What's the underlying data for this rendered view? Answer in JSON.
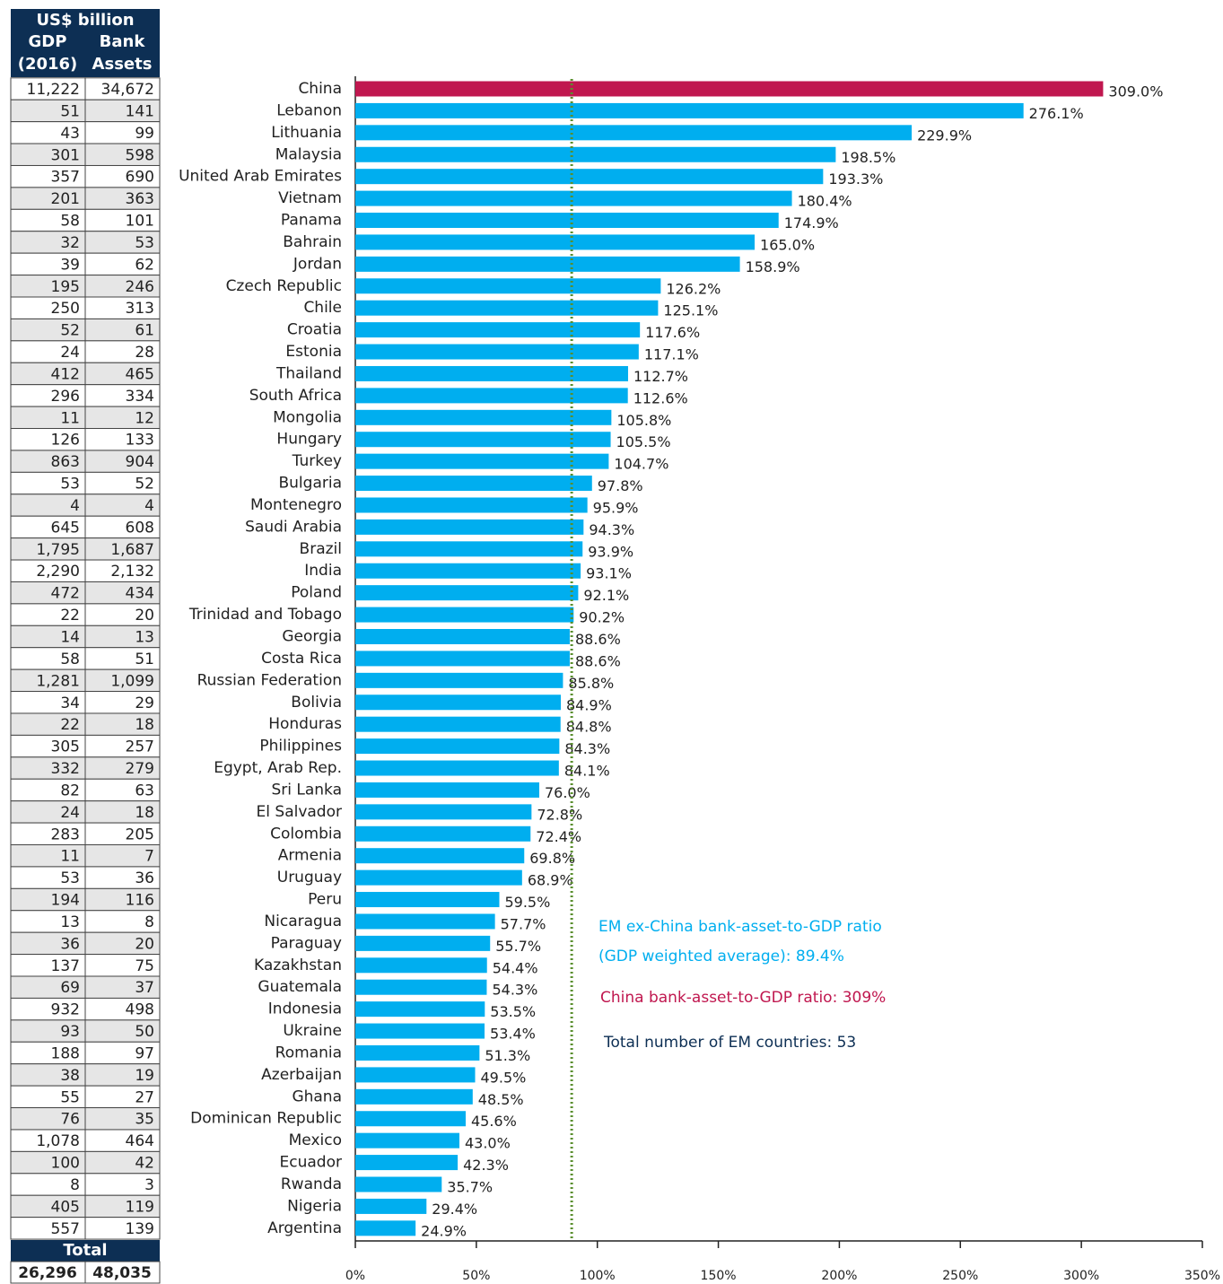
{
  "chart_data": {
    "type": "barh",
    "categories": [
      "China",
      "Lebanon",
      "Lithuania",
      "Malaysia",
      "United Arab Emirates",
      "Vietnam",
      "Panama",
      "Bahrain",
      "Jordan",
      "Czech Republic",
      "Chile",
      "Croatia",
      "Estonia",
      "Thailand",
      "South Africa",
      "Mongolia",
      "Hungary",
      "Turkey",
      "Bulgaria",
      "Montenegro",
      "Saudi Arabia",
      "Brazil",
      "India",
      "Poland",
      "Trinidad and Tobago",
      "Georgia",
      "Costa Rica",
      "Russian Federation",
      "Bolivia",
      "Honduras",
      "Philippines",
      "Egypt, Arab Rep.",
      "Sri Lanka",
      "El Salvador",
      "Colombia",
      "Armenia",
      "Uruguay",
      "Peru",
      "Nicaragua",
      "Paraguay",
      "Kazakhstan",
      "Guatemala",
      "Indonesia",
      "Ukraine",
      "Romania",
      "Azerbaijan",
      "Ghana",
      "Dominican Republic",
      "Mexico",
      "Ecuador",
      "Rwanda",
      "Nigeria",
      "Argentina"
    ],
    "values": [
      309.0,
      276.1,
      229.9,
      198.5,
      193.3,
      180.4,
      174.9,
      165.0,
      158.9,
      126.2,
      125.1,
      117.6,
      117.1,
      112.7,
      112.6,
      105.8,
      105.5,
      104.7,
      97.8,
      95.9,
      94.3,
      93.9,
      93.1,
      92.1,
      90.2,
      88.6,
      88.6,
      85.8,
      84.9,
      84.8,
      84.3,
      84.1,
      76.0,
      72.8,
      72.4,
      69.8,
      68.9,
      59.5,
      57.7,
      55.7,
      54.4,
      54.3,
      53.5,
      53.4,
      51.3,
      49.5,
      48.5,
      45.6,
      43.0,
      42.3,
      35.7,
      29.4,
      24.9
    ],
    "value_labels": [
      "309.0%",
      "276.1%",
      "229.9%",
      "198.5%",
      "193.3%",
      "180.4%",
      "174.9%",
      "165.0%",
      "158.9%",
      "126.2%",
      "125.1%",
      "117.6%",
      "117.1%",
      "112.7%",
      "112.6%",
      "105.8%",
      "105.5%",
      "104.7%",
      "97.8%",
      "95.9%",
      "94.3%",
      "93.9%",
      "93.1%",
      "92.1%",
      "90.2%",
      "88.6%",
      "88.6%",
      "85.8%",
      "84.9%",
      "84.8%",
      "84.3%",
      "84.1%",
      "76.0%",
      "72.8%",
      "72.4%",
      "69.8%",
      "68.9%",
      "59.5%",
      "57.7%",
      "55.7%",
      "54.4%",
      "54.3%",
      "53.5%",
      "53.4%",
      "51.3%",
      "49.5%",
      "48.5%",
      "45.6%",
      "43.0%",
      "42.3%",
      "35.7%",
      "29.4%",
      "24.9%"
    ],
    "colors": [
      "#c0174f",
      "#00aeef",
      "#00aeef",
      "#00aeef",
      "#00aeef",
      "#00aeef",
      "#00aeef",
      "#00aeef",
      "#00aeef",
      "#00aeef",
      "#00aeef",
      "#00aeef",
      "#00aeef",
      "#00aeef",
      "#00aeef",
      "#00aeef",
      "#00aeef",
      "#00aeef",
      "#00aeef",
      "#00aeef",
      "#00aeef",
      "#00aeef",
      "#00aeef",
      "#00aeef",
      "#00aeef",
      "#00aeef",
      "#00aeef",
      "#00aeef",
      "#00aeef",
      "#00aeef",
      "#00aeef",
      "#00aeef",
      "#00aeef",
      "#00aeef",
      "#00aeef",
      "#00aeef",
      "#00aeef",
      "#00aeef",
      "#00aeef",
      "#00aeef",
      "#00aeef",
      "#00aeef",
      "#00aeef",
      "#00aeef",
      "#00aeef",
      "#00aeef",
      "#00aeef",
      "#00aeef",
      "#00aeef",
      "#00aeef",
      "#00aeef",
      "#00aeef",
      "#00aeef"
    ],
    "xlim": [
      0,
      350
    ],
    "xticks": [
      {
        "value": 0,
        "label": "0%"
      },
      {
        "value": 50,
        "label": "50%"
      },
      {
        "value": 100,
        "label": "100%"
      },
      {
        "value": 150,
        "label": "150%"
      },
      {
        "value": 200,
        "label": "200%"
      },
      {
        "value": 250,
        "label": "250%"
      },
      {
        "value": 300,
        "label": "300%"
      },
      {
        "value": 350,
        "label": "350%"
      }
    ],
    "reference_line": {
      "value": 89.4,
      "color": "#5a8f2e"
    },
    "annotations": [
      {
        "text": "EM ex-China bank-asset-to-GDP ratio",
        "color": "#00aeef"
      },
      {
        "text": "(GDP weighted average): 89.4%",
        "color": "#00aeef"
      },
      {
        "text": "China bank-asset-to-GDP ratio: 309%",
        "color": "#c0174f"
      },
      {
        "text": "Total number of EM countries: 53",
        "color": "#0d2f54"
      }
    ],
    "table": {
      "unit": "US$ billion",
      "col1": [
        "GDP",
        "(2016)"
      ],
      "col2": [
        "Bank",
        "Assets"
      ],
      "rows": [
        [
          "11,222",
          "34,672"
        ],
        [
          "51",
          "141"
        ],
        [
          "43",
          "99"
        ],
        [
          "301",
          "598"
        ],
        [
          "357",
          "690"
        ],
        [
          "201",
          "363"
        ],
        [
          "58",
          "101"
        ],
        [
          "32",
          "53"
        ],
        [
          "39",
          "62"
        ],
        [
          "195",
          "246"
        ],
        [
          "250",
          "313"
        ],
        [
          "52",
          "61"
        ],
        [
          "24",
          "28"
        ],
        [
          "412",
          "465"
        ],
        [
          "296",
          "334"
        ],
        [
          "11",
          "12"
        ],
        [
          "126",
          "133"
        ],
        [
          "863",
          "904"
        ],
        [
          "53",
          "52"
        ],
        [
          "4",
          "4"
        ],
        [
          "645",
          "608"
        ],
        [
          "1,795",
          "1,687"
        ],
        [
          "2,290",
          "2,132"
        ],
        [
          "472",
          "434"
        ],
        [
          "22",
          "20"
        ],
        [
          "14",
          "13"
        ],
        [
          "58",
          "51"
        ],
        [
          "1,281",
          "1,099"
        ],
        [
          "34",
          "29"
        ],
        [
          "22",
          "18"
        ],
        [
          "305",
          "257"
        ],
        [
          "332",
          "279"
        ],
        [
          "82",
          "63"
        ],
        [
          "24",
          "18"
        ],
        [
          "283",
          "205"
        ],
        [
          "11",
          "7"
        ],
        [
          "53",
          "36"
        ],
        [
          "194",
          "116"
        ],
        [
          "13",
          "8"
        ],
        [
          "36",
          "20"
        ],
        [
          "137",
          "75"
        ],
        [
          "69",
          "37"
        ],
        [
          "932",
          "498"
        ],
        [
          "93",
          "50"
        ],
        [
          "188",
          "97"
        ],
        [
          "38",
          "19"
        ],
        [
          "55",
          "27"
        ],
        [
          "76",
          "35"
        ],
        [
          "1,078",
          "464"
        ],
        [
          "100",
          "42"
        ],
        [
          "8",
          "3"
        ],
        [
          "405",
          "119"
        ],
        [
          "557",
          "139"
        ]
      ],
      "total_label": "Total",
      "total": [
        "26,296",
        "48,035"
      ]
    }
  }
}
